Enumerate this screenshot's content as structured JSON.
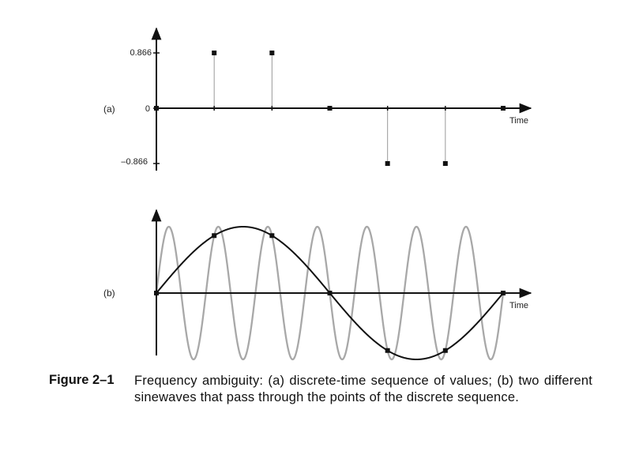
{
  "chart_data": [
    {
      "type": "scatter",
      "subtype": "stem",
      "panel_label": "(a)",
      "x": [
        0,
        1,
        2,
        3,
        4,
        5,
        6
      ],
      "values": [
        0,
        0.866,
        0.866,
        0,
        -0.866,
        -0.866,
        0
      ],
      "ytick_labels": [
        "0.866",
        "0",
        "–0.866"
      ],
      "xlabel": "Time",
      "ylim": [
        -0.866,
        0.866
      ]
    },
    {
      "type": "line",
      "panel_label": "(b)",
      "xlabel": "Time",
      "sample_x": [
        0,
        1,
        2,
        3,
        4,
        5,
        6
      ],
      "sample_values": [
        0,
        0.866,
        0.866,
        0,
        -0.866,
        -0.866,
        0
      ],
      "series": [
        {
          "cycles_over_record": 1,
          "color": "#111111"
        },
        {
          "cycles_over_record": 7,
          "color": "#a8a8a8"
        }
      ],
      "ylim": [
        -1,
        1
      ]
    }
  ],
  "caption": {
    "label": "Figure 2–1",
    "text": "Frequency ambiguity: (a) discrete-time sequence of values; (b) two different sinewaves that pass through the points of the discrete sequence."
  }
}
